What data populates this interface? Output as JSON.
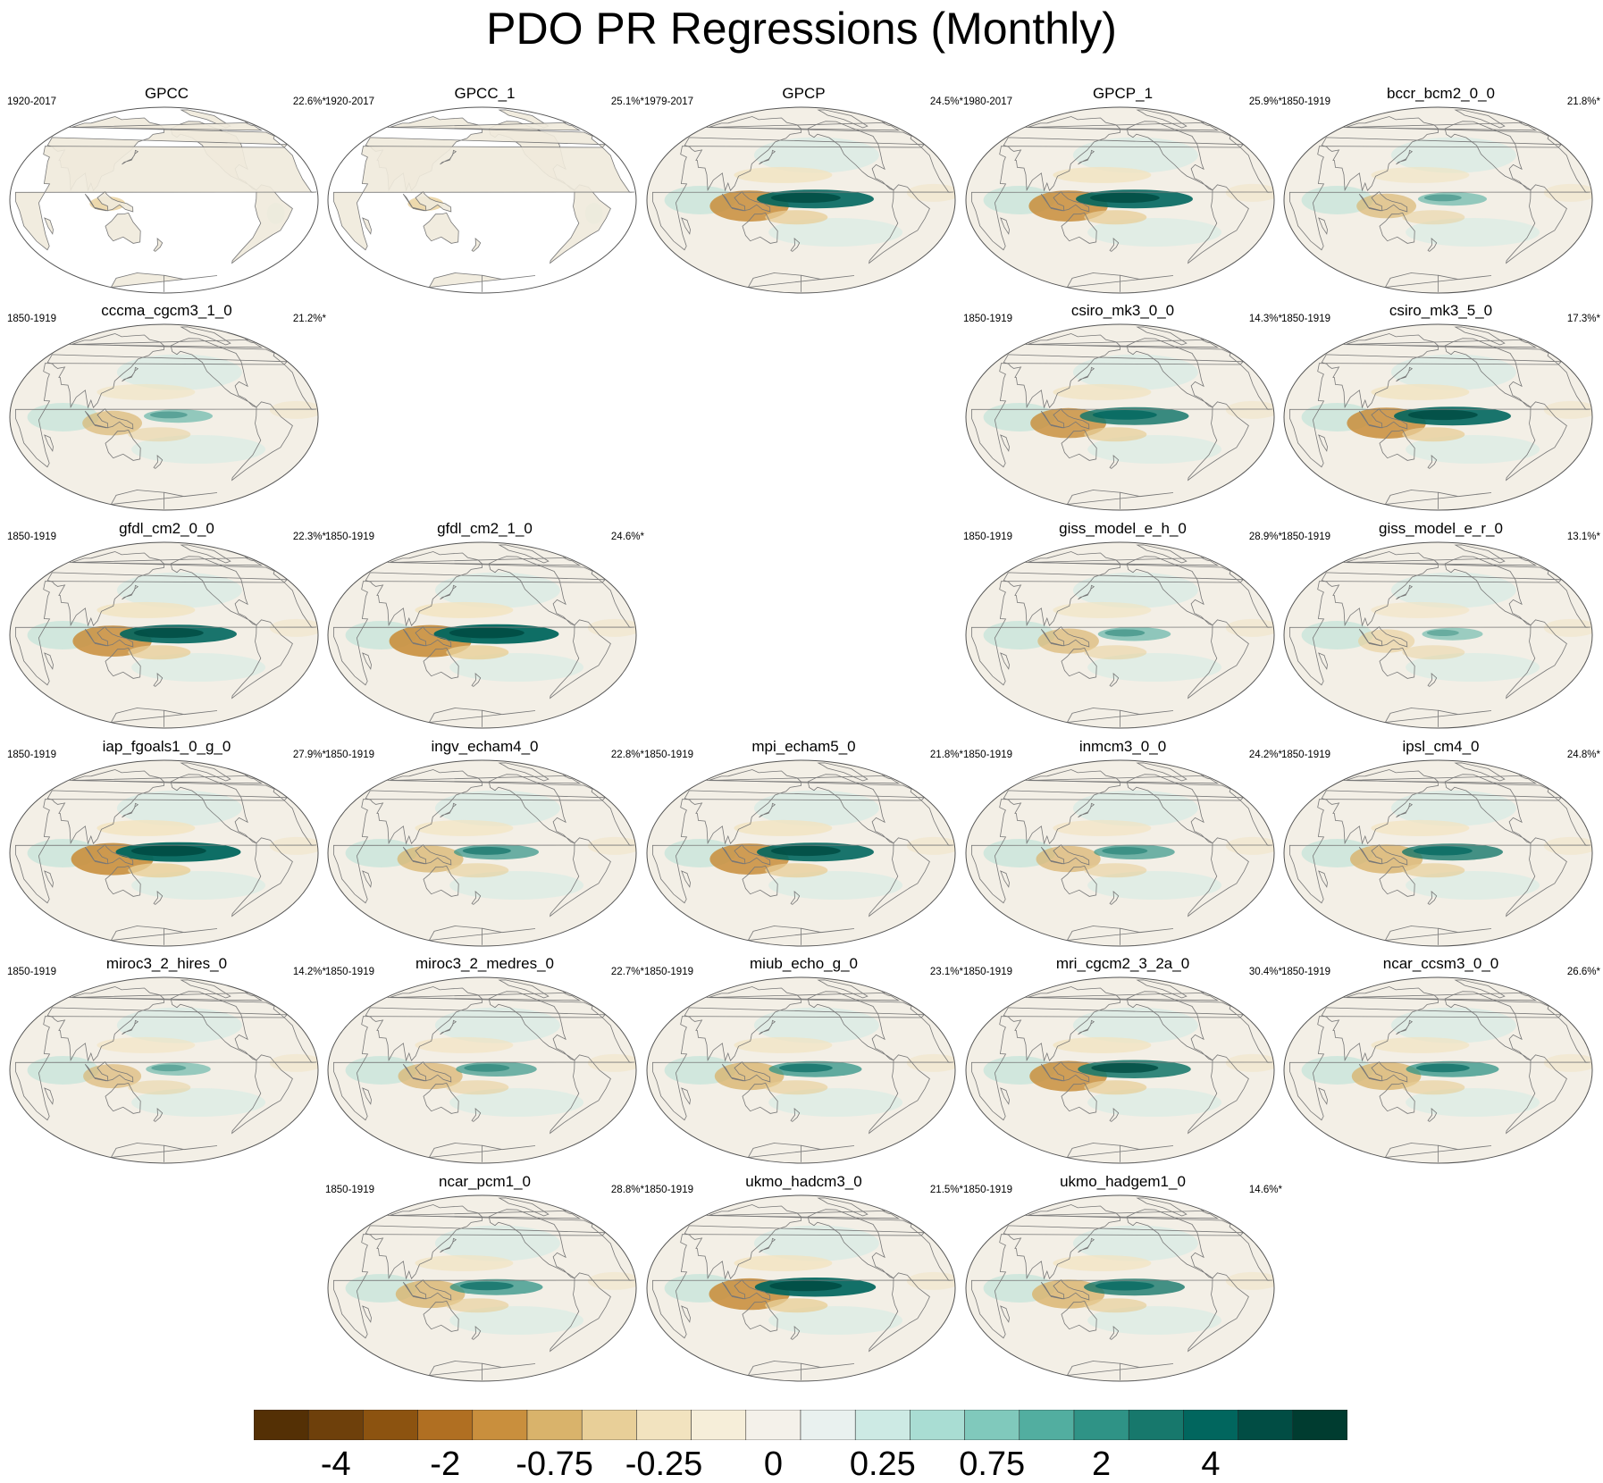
{
  "title": "PDO PR Regressions (Monthly)",
  "colors": {
    "ocean": "#f3efe6",
    "land_outline": "#777777",
    "frame": "#555555",
    "missing": "#ffffff"
  },
  "chart_data": {
    "type": "heatmap",
    "title": "PDO PR Regressions (Monthly)",
    "layout": "grid of Hammer-projection world maps, 5 columns by 6 rows",
    "panels": [
      {
        "name": "GPCC",
        "period": "1920-2017",
        "pct": "22.6%*",
        "row": 0,
        "col": 0,
        "land_only": true,
        "enso_strength": 0.3
      },
      {
        "name": "GPCC_1",
        "period": "1920-2017",
        "pct": "25.1%*",
        "row": 0,
        "col": 1,
        "land_only": true,
        "enso_strength": 0.2
      },
      {
        "name": "GPCP",
        "period": "1979-2017",
        "pct": "24.5%*",
        "row": 0,
        "col": 2,
        "land_only": false,
        "enso_strength": 0.9
      },
      {
        "name": "GPCP_1",
        "period": "1980-2017",
        "pct": "25.9%*",
        "row": 0,
        "col": 3,
        "land_only": false,
        "enso_strength": 0.9
      },
      {
        "name": "bccr_bcm2_0_0",
        "period": "1850-1919",
        "pct": "21.8%*",
        "row": 0,
        "col": 4,
        "land_only": false,
        "enso_strength": 0.3
      },
      {
        "name": "cccma_cgcm3_1_0",
        "period": "1850-1919",
        "pct": "21.2%*",
        "row": 1,
        "col": 0,
        "land_only": false,
        "enso_strength": 0.3
      },
      {
        "name": "csiro_mk3_0_0",
        "period": "1850-1919",
        "pct": "14.3%*",
        "row": 1,
        "col": 3,
        "land_only": false,
        "enso_strength": 0.8
      },
      {
        "name": "csiro_mk3_5_0",
        "period": "1850-1919",
        "pct": "17.3%*",
        "row": 1,
        "col": 4,
        "land_only": false,
        "enso_strength": 0.9
      },
      {
        "name": "gfdl_cm2_0_0",
        "period": "1850-1919",
        "pct": "22.3%*",
        "row": 2,
        "col": 0,
        "land_only": false,
        "enso_strength": 0.9
      },
      {
        "name": "gfdl_cm2_1_0",
        "period": "1850-1919",
        "pct": "24.6%*",
        "row": 2,
        "col": 1,
        "land_only": false,
        "enso_strength": 1.0
      },
      {
        "name": "giss_model_e_h_0",
        "period": "1850-1919",
        "pct": "28.9%*",
        "row": 2,
        "col": 3,
        "land_only": false,
        "enso_strength": 0.35
      },
      {
        "name": "giss_model_e_r_0",
        "period": "1850-1919",
        "pct": "13.1%*",
        "row": 2,
        "col": 4,
        "land_only": false,
        "enso_strength": 0.2
      },
      {
        "name": "iap_fgoals1_0_g_0",
        "period": "1850-1919",
        "pct": "27.9%*",
        "row": 3,
        "col": 0,
        "land_only": false,
        "enso_strength": 1.0
      },
      {
        "name": "ingv_echam4_0",
        "period": "1850-1919",
        "pct": "22.8%*",
        "row": 3,
        "col": 1,
        "land_only": false,
        "enso_strength": 0.5
      },
      {
        "name": "mpi_echam5_0",
        "period": "1850-1919",
        "pct": "21.8%*",
        "row": 3,
        "col": 2,
        "land_only": false,
        "enso_strength": 0.9
      },
      {
        "name": "inmcm3_0_0",
        "period": "1850-1919",
        "pct": "24.2%*",
        "row": 3,
        "col": 3,
        "land_only": false,
        "enso_strength": 0.45
      },
      {
        "name": "ipsl_cm4_0",
        "period": "1850-1919",
        "pct": "24.8%*",
        "row": 3,
        "col": 4,
        "land_only": false,
        "enso_strength": 0.7
      },
      {
        "name": "miroc3_2_hires_0",
        "period": "1850-1919",
        "pct": "14.2%*",
        "row": 4,
        "col": 0,
        "land_only": false,
        "enso_strength": 0.25
      },
      {
        "name": "miroc3_2_medres_0",
        "period": "1850-1919",
        "pct": "22.7%*",
        "row": 4,
        "col": 1,
        "land_only": false,
        "enso_strength": 0.45
      },
      {
        "name": "miub_echo_g_0",
        "period": "1850-1919",
        "pct": "23.1%*",
        "row": 4,
        "col": 2,
        "land_only": false,
        "enso_strength": 0.6
      },
      {
        "name": "mri_cgcm2_3_2a_0",
        "period": "1850-1919",
        "pct": "30.4%*",
        "row": 4,
        "col": 3,
        "land_only": false,
        "enso_strength": 0.85
      },
      {
        "name": "ncar_ccsm3_0_0",
        "period": "1850-1919",
        "pct": "26.6%*",
        "row": 4,
        "col": 4,
        "land_only": false,
        "enso_strength": 0.6
      },
      {
        "name": "ncar_pcm1_0",
        "period": "1850-1919",
        "pct": "28.8%*",
        "row": 5,
        "col": 1,
        "land_only": false,
        "enso_strength": 0.6
      },
      {
        "name": "ukmo_hadcm3_0",
        "period": "1850-1919",
        "pct": "21.5%*",
        "row": 5,
        "col": 2,
        "land_only": false,
        "enso_strength": 0.95
      },
      {
        "name": "ukmo_hadgem1_0",
        "period": "1850-1919",
        "pct": "14.6%*",
        "row": 5,
        "col": 3,
        "land_only": false,
        "enso_strength": 0.7
      }
    ],
    "colorbar": {
      "colors": [
        "#543005",
        "#6e400b",
        "#8c5310",
        "#b06f22",
        "#c98f3d",
        "#d9b36b",
        "#e8cf98",
        "#f2e3bf",
        "#f6eed9",
        "#f4f1ea",
        "#e9f1ef",
        "#cdeae4",
        "#a9ddd3",
        "#80c9bc",
        "#52aea0",
        "#2f9386",
        "#17786c",
        "#01665e",
        "#014d44",
        "#003c30"
      ],
      "tick_labels": [
        "-4",
        "-2",
        "-0.75",
        "-0.25",
        "0",
        "0.25",
        "0.75",
        "2",
        "4"
      ],
      "tick_boundaries": [
        2,
        4,
        6,
        8,
        10,
        12,
        14,
        16,
        18
      ]
    }
  }
}
